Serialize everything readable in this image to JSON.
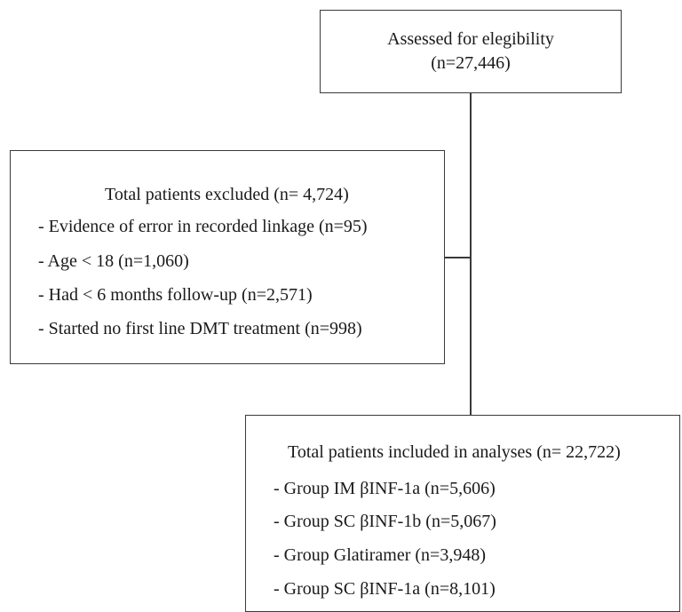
{
  "top_box": {
    "line1": "Assessed for elegibility",
    "line2": "(n=27,446)"
  },
  "excluded_box": {
    "heading": "Total patients excluded (n= 4,724)",
    "items": [
      "- Evidence of error in recorded linkage (n=95)",
      "- Age < 18 (n=1,060)",
      "- Had < 6 months follow-up (n=2,571)",
      "- Started no first line DMT treatment (n=998)"
    ]
  },
  "included_box": {
    "heading": "Total patients included in analyses (n= 22,722)",
    "items": [
      "- Group IM βINF-1a  (n=5,606)",
      "- Group SC βINF-1b  (n=5,067)",
      "- Group Glatiramer (n=3,948)",
      "- Group SC βINF-1a  (n=8,101)"
    ]
  }
}
